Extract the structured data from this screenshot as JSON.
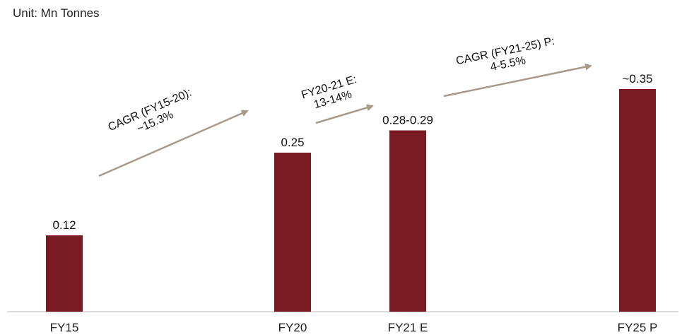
{
  "chart_data": {
    "type": "bar",
    "unit_label": "Unit: Mn Tonnes",
    "categories": [
      "FY15",
      "FY20",
      "FY21 E",
      "FY25 P"
    ],
    "values": [
      0.12,
      0.25,
      0.285,
      0.35
    ],
    "data_labels": [
      "0.12",
      "0.25",
      "0.28-0.29",
      "~0.35"
    ],
    "ylim": [
      0,
      0.37
    ],
    "bar_color": "#7a1b24",
    "arrow_color": "#a89a8a",
    "annotations": [
      {
        "lines": [
          "CAGR (FY15-20):",
          "~15.3%"
        ],
        "from_category": "FY15",
        "to_category": "FY20"
      },
      {
        "lines": [
          "FY20-21 E:",
          "13-14%"
        ],
        "from_category": "FY20",
        "to_category": "FY21 E"
      },
      {
        "lines": [
          "CAGR (FY21-25) P:",
          "4-5.5%"
        ],
        "from_category": "FY21 E",
        "to_category": "FY25 P"
      }
    ]
  }
}
